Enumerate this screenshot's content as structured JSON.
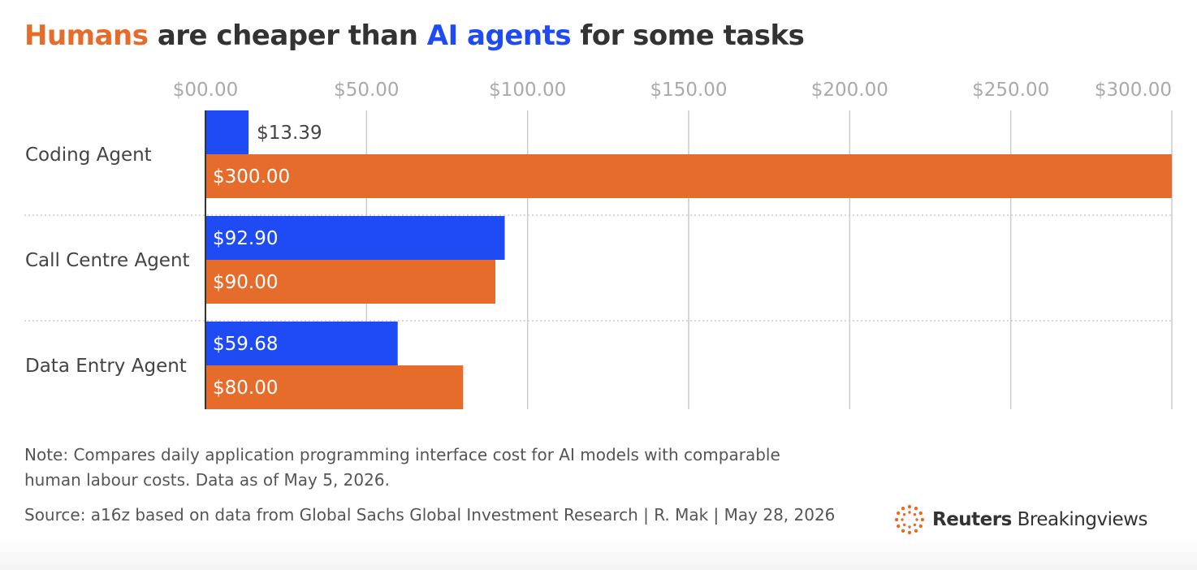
{
  "title": {
    "part1": "Humans",
    "part2": " are cheaper than ",
    "part3": "AI agents",
    "part4": " for some tasks"
  },
  "colors": {
    "ai": "#1f4bf5",
    "human": "#e66c2c",
    "grid": "#cccccc",
    "tick": "#aaaaaa",
    "text": "#333333"
  },
  "chart_data": {
    "type": "bar",
    "orientation": "horizontal",
    "categories": [
      "Coding Agent",
      "Call Centre Agent",
      "Data Entry Agent"
    ],
    "series": [
      {
        "name": "AI agents",
        "values": [
          13.39,
          92.9,
          59.68
        ],
        "labels": [
          "$13.39",
          "$92.90",
          "$59.68"
        ],
        "color": "#1f4bf5"
      },
      {
        "name": "Humans",
        "values": [
          300.0,
          90.0,
          80.0
        ],
        "labels": [
          "$300.00",
          "$90.00",
          "$80.00"
        ],
        "color": "#e66c2c"
      }
    ],
    "xticks": [
      0,
      50,
      100,
      150,
      200,
      250,
      300
    ],
    "xtick_labels": [
      "$00.00",
      "$50.00",
      "$100.00",
      "$150.00",
      "$200.00",
      "$250.00",
      "$300.00"
    ],
    "xlim": [
      0,
      300
    ],
    "xaxis_position": "top",
    "grid": true
  },
  "note": "Note: Compares daily application programming interface cost for AI models with comparable human labour costs. Data as of May 5, 2026.",
  "source": "Source: a16z based on data from Global Sachs Global Investment Research | R. Mak | May 28, 2026",
  "logo": {
    "bold": "Reuters",
    "rest": " Breakingviews"
  }
}
